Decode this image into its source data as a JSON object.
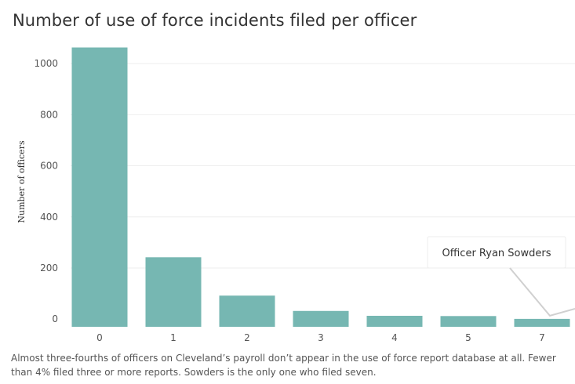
{
  "chart_data": {
    "type": "bar",
    "title": "Number of use of force incidents filed per officer",
    "xlabel": "",
    "ylabel": "Number of officers",
    "categories": [
      "0",
      "1",
      "2",
      "3",
      "4",
      "5",
      "7"
    ],
    "values": [
      1063,
      242,
      92,
      32,
      13,
      12,
      1
    ],
    "y_ticks": [
      0,
      200,
      400,
      600,
      800,
      1000
    ],
    "ylim": [
      -30,
      1080
    ],
    "grid": true,
    "annotation": {
      "text": "Officer Ryan Sowders",
      "target_category": "7"
    },
    "colors": {
      "bar": "#76b7b2",
      "grid": "#eeeeee",
      "annotation_line": "#d0d0d0"
    }
  },
  "caption": "Almost three-fourths of officers on Cleveland’s payroll don’t appear in the use of force report database at all. Fewer than 4% filed three or more reports. Sowders is the only one who filed seven."
}
